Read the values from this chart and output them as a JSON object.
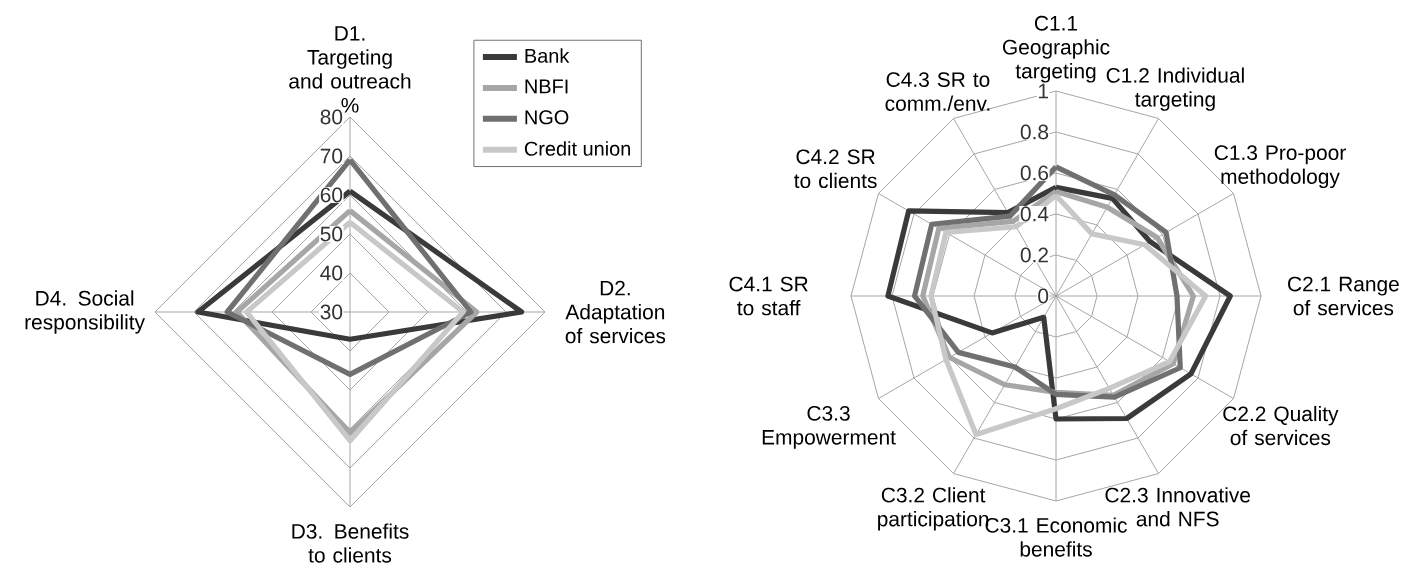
{
  "chart_data": [
    {
      "type": "radar",
      "ylabel": "%",
      "categories": [
        "D1. Targeting and outreach",
        "D2. Adaptation of services",
        "D3. Benefits to clients",
        "D4. Social responsibility"
      ],
      "series": [
        {
          "name": "Bank",
          "color": "#3a3a3a",
          "values": [
            61,
            74,
            37,
            69
          ]
        },
        {
          "name": "NBFI",
          "color": "#a6a6a6",
          "values": [
            56,
            62.5,
            61,
            59
          ]
        },
        {
          "name": "NGO",
          "color": "#707070",
          "values": [
            69,
            61,
            46,
            61.5
          ]
        },
        {
          "name": "Credit union",
          "color": "#c8c8c8",
          "values": [
            53,
            59,
            63,
            56.5
          ]
        }
      ],
      "ylim": [
        30,
        80
      ],
      "yticks": [
        30,
        40,
        50,
        60,
        70,
        80
      ],
      "grid": true,
      "legend": "top right"
    },
    {
      "type": "radar",
      "categories": [
        "C1.1 Geographic targeting",
        "C1.2 Individual targeting",
        "C1.3 Pro-poor methodology",
        "C2.1 Range of services",
        "C2.2 Quality of services",
        "C2.3 Innovative and NFS",
        "C3.1 Economic benefits",
        "C3.2 Client participation",
        "C3.3 Empowerment",
        "C4.1 SR to staff",
        "C4.2 SR to clients",
        "C4.3 SR to comm./env."
      ],
      "series": [
        {
          "color": "#3a3a3a",
          "values": [
            0.53,
            0.55,
            0.53,
            0.85,
            0.76,
            0.69,
            0.6,
            0.12,
            0.36,
            0.82,
            0.83,
            0.47
          ]
        },
        {
          "color": "#a6a6a6",
          "values": [
            0.51,
            0.5,
            0.57,
            0.67,
            0.66,
            0.56,
            0.47,
            0.5,
            0.6,
            0.65,
            0.66,
            0.42
          ]
        },
        {
          "color": "#707070",
          "values": [
            0.63,
            0.57,
            0.62,
            0.59,
            0.7,
            0.57,
            0.48,
            0.4,
            0.55,
            0.69,
            0.7,
            0.45
          ]
        },
        {
          "color": "#c8c8c8",
          "values": [
            0.49,
            0.35,
            0.5,
            0.73,
            0.64,
            0.52,
            0.55,
            0.78,
            0.62,
            0.61,
            0.62,
            0.39
          ]
        }
      ],
      "ylim": [
        0,
        1
      ],
      "yticks": [
        0,
        0.2,
        0.4,
        0.6,
        0.8,
        1
      ],
      "grid": true,
      "legend": false
    }
  ]
}
